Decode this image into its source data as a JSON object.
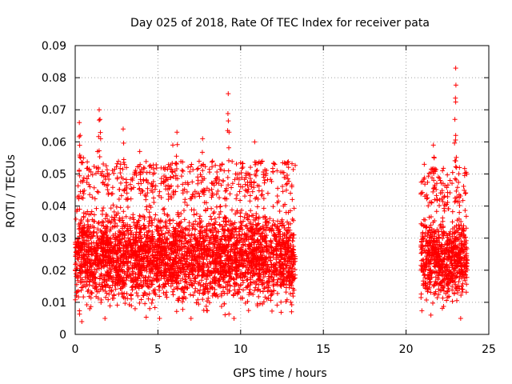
{
  "chart_data": {
    "type": "scatter",
    "title": "Day 025 of 2018, Rate Of TEC Index for receiver pata",
    "xlabel": "GPS time / hours",
    "ylabel": "ROTI / TECUs",
    "xlim": [
      0,
      25
    ],
    "ylim": [
      0,
      0.09
    ],
    "xticks": [
      0,
      5,
      10,
      15,
      20,
      25
    ],
    "xtick_labels": [
      "0",
      "5",
      "10",
      "15",
      "20",
      "25"
    ],
    "yticks": [
      0,
      0.01,
      0.02,
      0.03,
      0.04,
      0.05,
      0.06,
      0.07,
      0.08,
      0.09
    ],
    "ytick_labels": [
      "0",
      "0.01",
      "0.02",
      "0.03",
      "0.04",
      "0.05",
      "0.06",
      "0.07",
      "0.08",
      "0.09"
    ],
    "grid": true,
    "marker": "+",
    "marker_color": "#ff0000",
    "series": [
      {
        "name": "ROTI",
        "segments": [
          {
            "x_range": [
              0,
              13.3
            ],
            "typical_range": [
              0.007,
              0.042
            ],
            "peaks": [
              {
                "x": 0.25,
                "y": 0.066
              },
              {
                "x": 0.3,
                "y": 0.062
              },
              {
                "x": 0.5,
                "y": 0.055
              },
              {
                "x": 1.45,
                "y": 0.07
              },
              {
                "x": 1.5,
                "y": 0.067
              },
              {
                "x": 1.35,
                "y": 0.057
              },
              {
                "x": 2.9,
                "y": 0.064
              },
              {
                "x": 3.1,
                "y": 0.052
              },
              {
                "x": 3.9,
                "y": 0.057
              },
              {
                "x": 5.9,
                "y": 0.059
              },
              {
                "x": 6.15,
                "y": 0.063
              },
              {
                "x": 7.7,
                "y": 0.061
              },
              {
                "x": 9.25,
                "y": 0.075
              },
              {
                "x": 9.3,
                "y": 0.063
              },
              {
                "x": 10.85,
                "y": 0.06
              },
              {
                "x": 12.2,
                "y": 0.051
              },
              {
                "x": 11.4,
                "y": 0.049
              },
              {
                "x": 4.6,
                "y": 0.052
              },
              {
                "x": 8.3,
                "y": 0.054
              },
              {
                "x": 10.0,
                "y": 0.046
              }
            ],
            "lows": [
              {
                "x": 0.4,
                "y": 0.004
              },
              {
                "x": 1.8,
                "y": 0.005
              },
              {
                "x": 5.1,
                "y": 0.005
              },
              {
                "x": 7.0,
                "y": 0.005
              },
              {
                "x": 9.6,
                "y": 0.005
              }
            ]
          },
          {
            "x_range": [
              20.9,
              23.7
            ],
            "typical_range": [
              0.008,
              0.04
            ],
            "peaks": [
              {
                "x": 21.65,
                "y": 0.059
              },
              {
                "x": 21.7,
                "y": 0.055
              },
              {
                "x": 22.2,
                "y": 0.051
              },
              {
                "x": 23.0,
                "y": 0.083
              },
              {
                "x": 22.95,
                "y": 0.067
              },
              {
                "x": 23.0,
                "y": 0.062
              },
              {
                "x": 23.05,
                "y": 0.052
              },
              {
                "x": 21.1,
                "y": 0.053
              }
            ],
            "lows": [
              {
                "x": 21.5,
                "y": 0.006
              },
              {
                "x": 23.3,
                "y": 0.005
              }
            ]
          }
        ]
      }
    ]
  }
}
